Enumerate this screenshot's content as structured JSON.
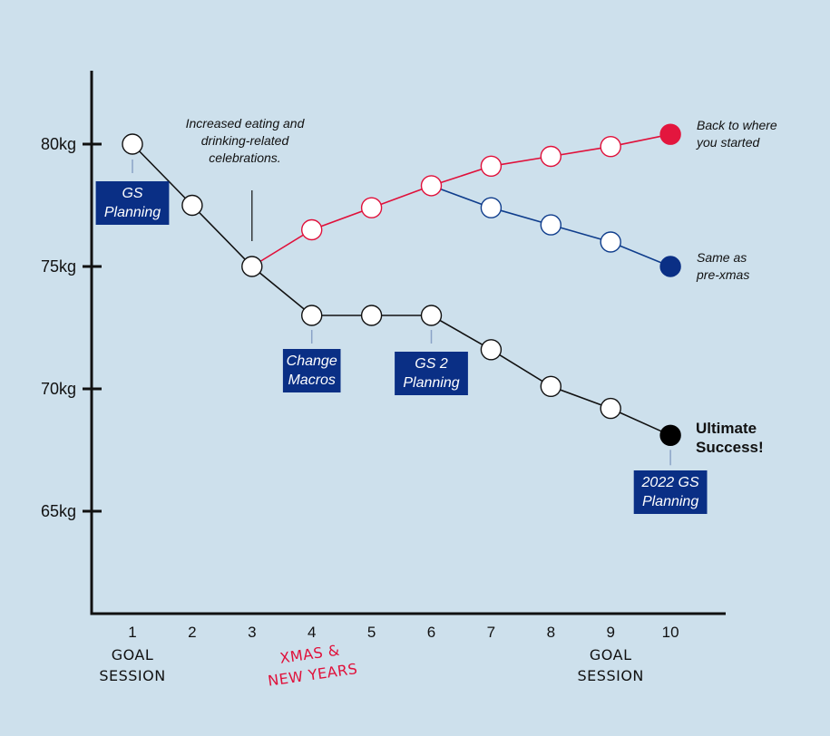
{
  "chart_data": {
    "type": "line",
    "title": "",
    "xlabel": "",
    "ylabel": "",
    "ylim": [
      61,
      83
    ],
    "xlim": [
      0.2,
      11
    ],
    "y_ticks": [
      {
        "value": 80,
        "label": "80kg"
      },
      {
        "value": 75,
        "label": "75kg"
      },
      {
        "value": 70,
        "label": "70kg"
      },
      {
        "value": 65,
        "label": "65kg"
      }
    ],
    "categories": [
      1,
      2,
      3,
      4,
      5,
      6,
      7,
      8,
      9,
      10
    ],
    "series": [
      {
        "color": "#111111",
        "end_color": "#000000",
        "x": [
          1,
          2,
          3,
          4,
          5,
          6,
          7,
          8,
          9,
          10
        ],
        "values": [
          80,
          77.5,
          75,
          73,
          73,
          73,
          71.6,
          70.1,
          69.2,
          68.1
        ]
      },
      {
        "color": "#e0103a",
        "end_color": "#e3163e",
        "x": [
          3,
          4,
          5,
          6,
          7,
          8,
          9,
          10
        ],
        "values": [
          75,
          76.5,
          77.4,
          78.3,
          79.1,
          79.5,
          79.9,
          80.4
        ]
      },
      {
        "color": "#0f3d8c",
        "end_color": "#0a2f85",
        "x": [
          6,
          7,
          8,
          9,
          10
        ],
        "values": [
          78.3,
          77.4,
          76.7,
          76,
          75
        ]
      }
    ],
    "annotations": {
      "increased_eating": [
        "Increased eating and",
        "drinking-related",
        "celebrations."
      ],
      "back_to_start": [
        "Back to where",
        "you started"
      ],
      "same_as": [
        "Same as",
        "pre-xmas"
      ],
      "ultimate": [
        "Ultimate",
        "Success!"
      ]
    },
    "tags": [
      {
        "x": 1,
        "lines": [
          "GS",
          "Planning"
        ]
      },
      {
        "x": 4,
        "lines": [
          "Change",
          "Macros"
        ]
      },
      {
        "x": 6,
        "lines": [
          "GS 2",
          "Planning"
        ]
      },
      {
        "x": 10,
        "lines": [
          "2022 GS",
          "Planning"
        ]
      }
    ],
    "under_axis": [
      {
        "x": 1,
        "lines": [
          "GOAL",
          "SESSION"
        ],
        "color": "#111111"
      },
      {
        "x": 4,
        "lines": [
          "XMAS &",
          "NEW YEARS"
        ],
        "color": "#e0103a"
      },
      {
        "x": 9,
        "lines": [
          "GOAL",
          "SESSION"
        ],
        "color": "#111111"
      }
    ],
    "grid": false,
    "legend": "none"
  },
  "colors": {
    "background": "#cde0ec",
    "tag_fill": "#0a2f85",
    "axis": "#111111"
  }
}
